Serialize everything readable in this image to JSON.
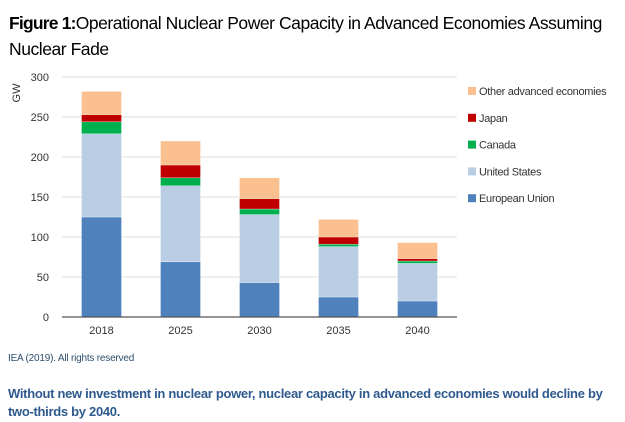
{
  "title": {
    "label": "Figure 1:",
    "text": "Operational Nuclear Power Capacity in Advanced Economies Assuming Nuclear Fade"
  },
  "source": "IEA (2019). All rights reserved",
  "caption": "Without new investment in nuclear power, nuclear capacity in advanced economies would decline by two-thirds by 2040.",
  "chart_data": {
    "type": "bar",
    "stacked": true,
    "ylabel": "GW",
    "ylim": [
      0,
      300
    ],
    "yticks": [
      0,
      50,
      100,
      150,
      200,
      250,
      300
    ],
    "grid": true,
    "legend": "right",
    "categories": [
      "2018",
      "2025",
      "2030",
      "2035",
      "2040"
    ],
    "series": [
      {
        "name": "European Union",
        "color": "#4f81bd",
        "values": [
          125,
          69,
          43,
          25,
          20
        ]
      },
      {
        "name": "United States",
        "color": "#b9cde5",
        "values": [
          104,
          95,
          85,
          63,
          47
        ]
      },
      {
        "name": "Canada",
        "color": "#00b050",
        "values": [
          15,
          10,
          7,
          3,
          3
        ]
      },
      {
        "name": "Japan",
        "color": "#c00000",
        "values": [
          9,
          16,
          13,
          9,
          3
        ]
      },
      {
        "name": "Other advanced economies",
        "color": "#fac090",
        "values": [
          29,
          30,
          26,
          22,
          20
        ]
      }
    ]
  }
}
